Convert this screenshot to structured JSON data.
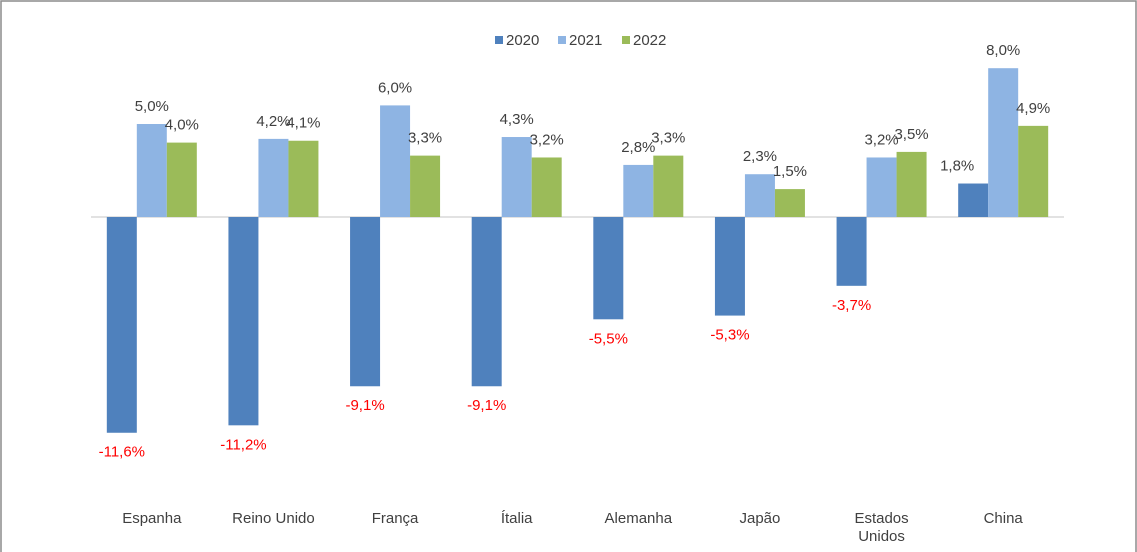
{
  "chart_data": {
    "type": "bar",
    "categories": [
      "Espanha",
      "Reino Unido",
      "França",
      "Ítalia",
      "Alemanha",
      "Japão",
      "Estados Unidos",
      "China"
    ],
    "series": [
      {
        "name": "2020",
        "color": "#4f81bd",
        "values": [
          -11.6,
          -11.2,
          -9.1,
          -9.1,
          -5.5,
          -5.3,
          -3.7,
          1.8
        ],
        "value_labels": [
          "-11,6%",
          "-11,2%",
          "-9,1%",
          "-9,1%",
          "-5,5%",
          "-5,3%",
          "-3,7%",
          "1,8%"
        ]
      },
      {
        "name": "2021",
        "color": "#8eb4e3",
        "values": [
          5.0,
          4.2,
          6.0,
          4.3,
          2.8,
          2.3,
          3.2,
          8.0
        ],
        "value_labels": [
          "5,0%",
          "4,2%",
          "6,0%",
          "4,3%",
          "2,8%",
          "2,3%",
          "3,2%",
          "8,0%"
        ]
      },
      {
        "name": "2022",
        "color": "#9bbb59",
        "values": [
          4.0,
          4.1,
          3.3,
          3.2,
          3.3,
          1.5,
          3.5,
          4.9
        ],
        "value_labels": [
          "4,0%",
          "4,1%",
          "3,3%",
          "3,2%",
          "3,3%",
          "1,5%",
          "3,5%",
          "4,9%"
        ]
      }
    ],
    "ylim": [
      -12,
      9
    ],
    "negative_label_color": "#ff0000",
    "legend": "top"
  }
}
